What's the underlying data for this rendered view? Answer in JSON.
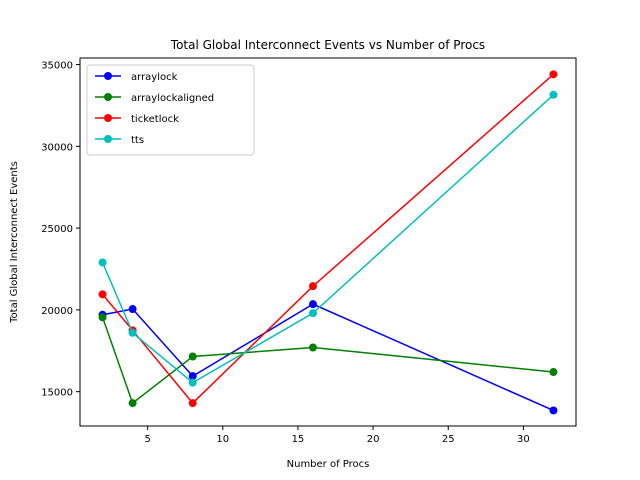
{
  "chart_data": {
    "type": "line",
    "title": "Total Global Interconnect Events vs Number of Procs",
    "xlabel": "Number of Procs",
    "ylabel": "Total Global Interconnect Events",
    "xlim": [
      0.5,
      33.5
    ],
    "ylim": [
      12900,
      35400
    ],
    "xticks": [
      5,
      10,
      15,
      20,
      25,
      30
    ],
    "yticks": [
      15000,
      20000,
      25000,
      30000,
      35000
    ],
    "legend_position": "upper-left",
    "grid": false,
    "series": [
      {
        "name": "arraylock",
        "color": "#0000ff",
        "x": [
          2,
          4,
          8,
          16,
          32
        ],
        "y": [
          19700,
          20050,
          15950,
          20350,
          13850
        ]
      },
      {
        "name": "arraylockaligned",
        "color": "#008000",
        "x": [
          2,
          4,
          8,
          16,
          32
        ],
        "y": [
          19550,
          14300,
          17150,
          17700,
          16200
        ]
      },
      {
        "name": "ticketlock",
        "color": "#ff0000",
        "x": [
          2,
          4,
          8,
          16,
          32
        ],
        "y": [
          20950,
          18750,
          14300,
          21450,
          34400
        ]
      },
      {
        "name": "tts",
        "color": "#00bfbf",
        "x": [
          2,
          4,
          8,
          16,
          32
        ],
        "y": [
          22900,
          18600,
          15550,
          19800,
          33150
        ]
      }
    ]
  }
}
